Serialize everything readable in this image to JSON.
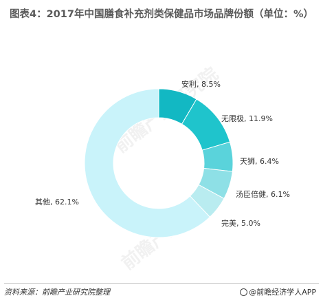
{
  "title": "图表4：2017年中国膳食补充剂类保健品市场品牌份额（单位：%）",
  "source": "资料来源：前瞻产业研究院整理",
  "brand": "@前瞻经济学人APP",
  "watermark": "前瞻产业研究院",
  "chart_data": {
    "type": "pie",
    "subtype": "donut",
    "title": "图表4：2017年中国膳食补充剂类保健品市场品牌份额（单位：%）",
    "unit": "%",
    "categories": [
      "安利",
      "无限极",
      "天狮",
      "汤臣倍健",
      "完美",
      "其他"
    ],
    "values": [
      8.5,
      11.9,
      6.4,
      6.1,
      5.0,
      62.1
    ],
    "labels": [
      "安利, 8.5%",
      "无限极, 11.9%",
      "天狮, 6.4%",
      "汤臣倍健, 6.1%",
      "完美, 5.0%",
      "其他, 62.1%"
    ],
    "colors": [
      "#12b8c3",
      "#1fc4cc",
      "#5ad3db",
      "#8ee0e6",
      "#b9ecf0",
      "#c9f3fa"
    ],
    "start_angle_deg": 0,
    "direction": "clockwise",
    "legend": "none"
  }
}
